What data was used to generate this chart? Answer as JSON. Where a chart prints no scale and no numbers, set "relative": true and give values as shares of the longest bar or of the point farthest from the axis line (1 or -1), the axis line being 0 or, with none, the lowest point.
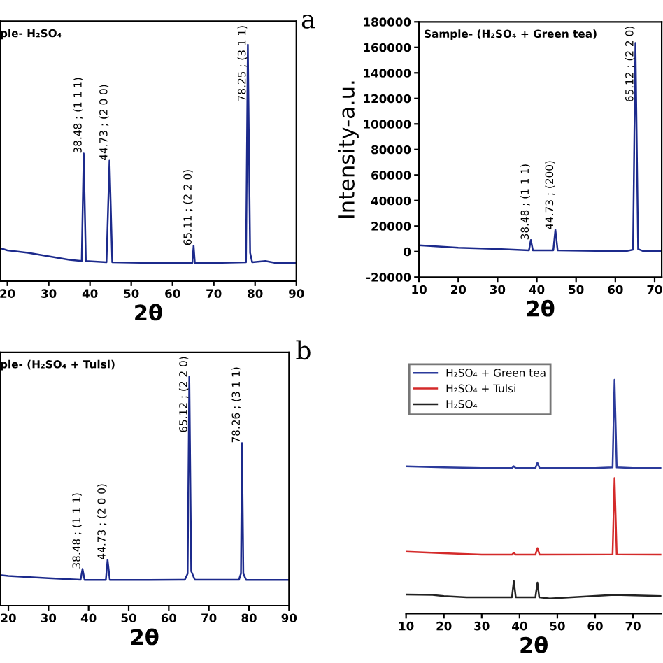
{
  "chart_data": [
    {
      "type": "line",
      "title": "ple- H₂SO₄",
      "xlabel": "2θ",
      "relative": true,
      "tick_labels": "x",
      "xlim": [
        18.2,
        90
      ],
      "xticks": [
        20,
        30,
        40,
        50,
        60,
        70,
        80,
        90
      ],
      "grid": false,
      "legend": false,
      "series": [
        {
          "color": "#1c2a8c",
          "x": [
            18.2,
            20,
            25,
            30,
            35,
            38,
            38.48,
            39,
            44,
            44.73,
            45.4,
            50,
            55,
            60,
            64.8,
            65.11,
            65.4,
            70,
            77.8,
            78.25,
            78.8,
            79.3,
            82.5,
            85,
            90
          ],
          "values": [
            0.14,
            0.13,
            0.12,
            0.105,
            0.09,
            0.085,
            0.54,
            0.085,
            0.08,
            0.51,
            0.08,
            0.078,
            0.077,
            0.077,
            0.077,
            0.15,
            0.077,
            0.077,
            0.08,
            1.0,
            0.12,
            0.08,
            0.085,
            0.077,
            0.077
          ]
        }
      ],
      "annotations": [
        "a",
        {
          "text": "38.48 ; (1 1 1)",
          "x": 38.48,
          "y": 0.54
        },
        {
          "text": "44.73 ; (2 0 0)",
          "x": 44.73,
          "y": 0.51
        },
        {
          "text": "65.11 ; (2 2 0)",
          "x": 65.11,
          "y": 0.15
        },
        {
          "text": "78.25 ; (3 1 1)",
          "x": 78.25,
          "y": 1.0
        }
      ]
    },
    {
      "type": "line",
      "title": "Sample- (H₂SO₄ + Green tea)",
      "xlabel": "2θ",
      "ylabel": "Intensity-a.u.",
      "xlim": [
        10,
        71.8
      ],
      "xticks": [
        10,
        20,
        30,
        40,
        50,
        60,
        70
      ],
      "ylim": [
        -20000,
        180000
      ],
      "yticks": [
        -20000,
        0,
        20000,
        40000,
        60000,
        80000,
        100000,
        120000,
        140000,
        160000,
        180000
      ],
      "grid": false,
      "legend": false,
      "series": [
        {
          "color": "#1c2a8c",
          "x": [
            10,
            15,
            20,
            30,
            38,
            38.48,
            39,
            44.2,
            44.73,
            45.3,
            55,
            63,
            64.5,
            65.12,
            65.8,
            67,
            71.8
          ],
          "values": [
            5000,
            4000,
            3000,
            2000,
            1000,
            9000,
            1000,
            1000,
            17000,
            1000,
            500,
            500,
            1500,
            163500,
            2000,
            500,
            500
          ]
        }
      ],
      "annotations": [
        {
          "text": "38.48 ; (1 1 1)",
          "x": 38.48,
          "y": 9000
        },
        {
          "text": "44.73 ; (200)",
          "x": 44.73,
          "y": 17000
        },
        {
          "text": "65.12 ; (2 2 0)",
          "x": 65.12,
          "y": 163500
        }
      ]
    },
    {
      "type": "line",
      "title": "ple- (H₂SO₄ + Tulsi)",
      "xlabel": "2θ",
      "relative": true,
      "tick_labels": "x",
      "xlim": [
        17.9,
        90
      ],
      "xticks": [
        20,
        30,
        40,
        50,
        60,
        70,
        80,
        90
      ],
      "grid": false,
      "legend": false,
      "series": [
        {
          "color": "#1c2a8c",
          "x": [
            17.9,
            20,
            30,
            38,
            38.48,
            39,
            44.3,
            44.73,
            45.3,
            55,
            64,
            64.7,
            65.12,
            65.6,
            66.5,
            77.5,
            78.0,
            78.26,
            78.6,
            79.3,
            90
          ],
          "values": [
            0.134,
            0.13,
            0.12,
            0.113,
            0.16,
            0.112,
            0.112,
            0.2,
            0.112,
            0.112,
            0.113,
            0.14,
            1.0,
            0.15,
            0.113,
            0.113,
            0.14,
            0.71,
            0.14,
            0.112,
            0.112
          ]
        }
      ],
      "annotations": [
        "b",
        {
          "text": "38.48 ; (1 1 1)",
          "x": 38.48,
          "y": 0.16
        },
        {
          "text": "44.73 ; (2 0 0)",
          "x": 44.73,
          "y": 0.2
        },
        {
          "text": "65.12 ; (2 2 0)",
          "x": 65.12,
          "y": 1.0
        },
        {
          "text": "78.26 ; (3 1 1)",
          "x": 78.26,
          "y": 0.71
        }
      ]
    },
    {
      "type": "line",
      "xlabel": "2θ",
      "relative": true,
      "tick_labels": "x",
      "xlim": [
        10,
        77.5
      ],
      "xticks": [
        10,
        20,
        30,
        40,
        50,
        60,
        70
      ],
      "grid": false,
      "legend": "top left",
      "series": [
        {
          "name": "H₂SO₄ + Green tea",
          "color": "#2b3a9b",
          "x": [
            10,
            20,
            30,
            38,
            38.48,
            39,
            44.2,
            44.73,
            45.3,
            60,
            64.6,
            65.12,
            65.7,
            70,
            77.5
          ],
          "values": [
            0.63,
            0.625,
            0.622,
            0.622,
            0.63,
            0.622,
            0.622,
            0.645,
            0.622,
            0.622,
            0.625,
            1.0,
            0.625,
            0.622,
            0.622
          ]
        },
        {
          "name": "H₂SO₄ + Tulsi",
          "color": "#d42a2a",
          "x": [
            10,
            20,
            30,
            38,
            38.48,
            39,
            44.2,
            44.73,
            45.3,
            64.6,
            65.12,
            65.7,
            77.5
          ],
          "values": [
            0.265,
            0.258,
            0.252,
            0.252,
            0.26,
            0.252,
            0.252,
            0.28,
            0.252,
            0.253,
            0.58,
            0.253,
            0.252
          ]
        },
        {
          "name": "H₂SO₄",
          "color": "#222222",
          "x": [
            10,
            17,
            20,
            26,
            38,
            38.48,
            39,
            44.2,
            44.73,
            45.2,
            48,
            65,
            77.5
          ],
          "values": [
            0.082,
            0.08,
            0.075,
            0.07,
            0.07,
            0.14,
            0.07,
            0.07,
            0.133,
            0.07,
            0.065,
            0.08,
            0.075
          ]
        }
      ]
    }
  ]
}
